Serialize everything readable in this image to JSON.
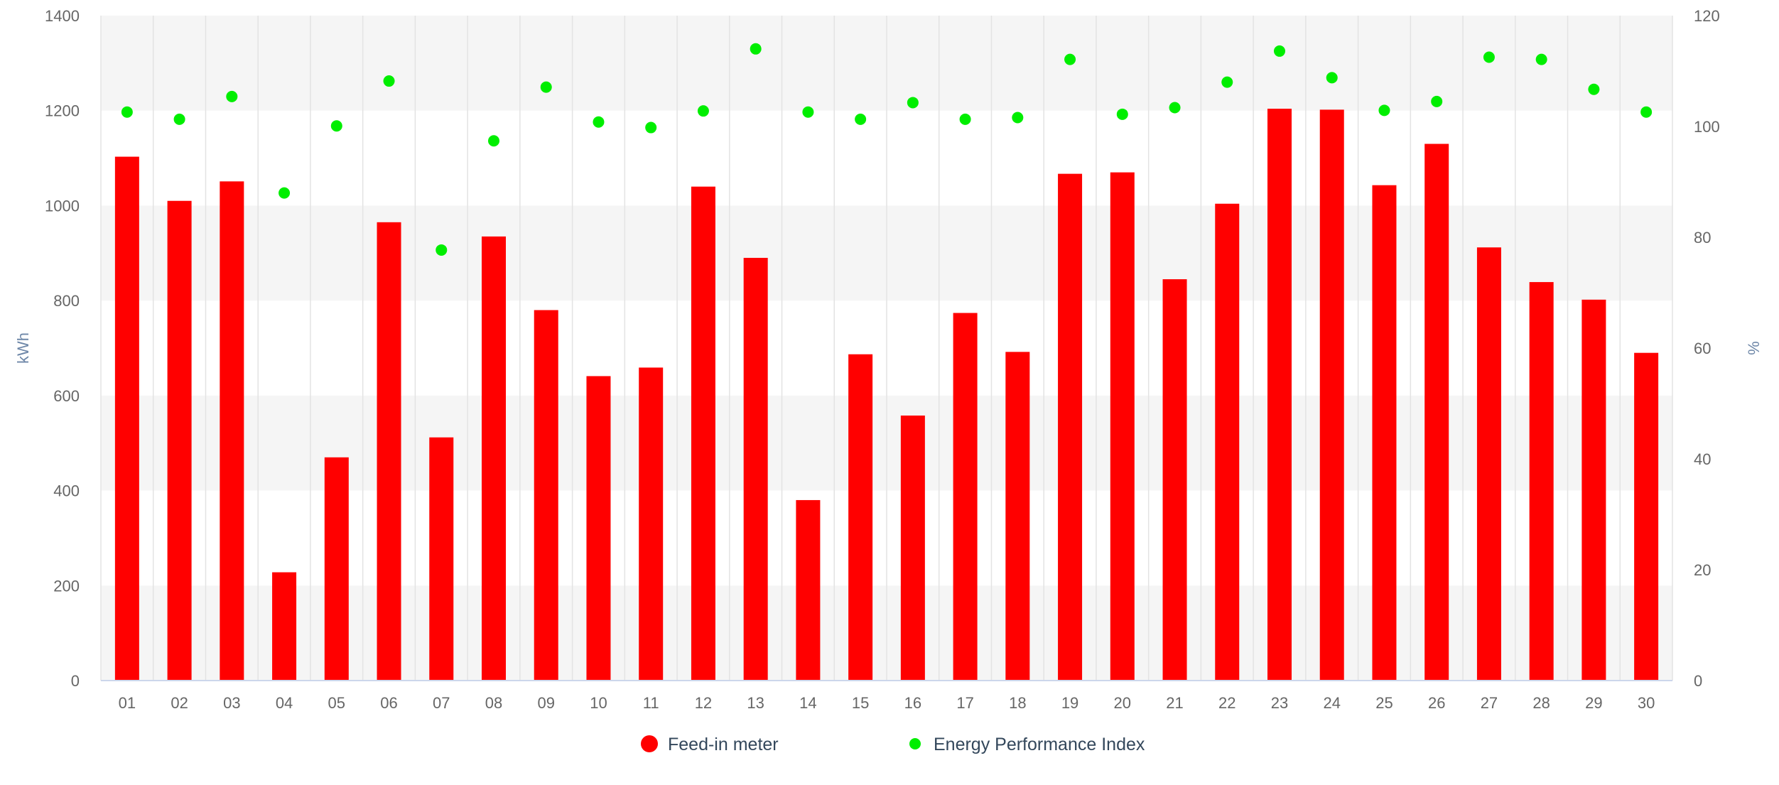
{
  "chart_data": {
    "type": "bar",
    "categories": [
      "01",
      "02",
      "03",
      "04",
      "05",
      "06",
      "07",
      "08",
      "09",
      "10",
      "11",
      "12",
      "13",
      "14",
      "15",
      "16",
      "17",
      "18",
      "19",
      "20",
      "21",
      "22",
      "23",
      "24",
      "25",
      "26",
      "27",
      "28",
      "29",
      "30"
    ],
    "series": [
      {
        "name": "Feed-in meter",
        "type": "bar",
        "axis": "left",
        "color": "#ff0000",
        "values": [
          1103,
          1010,
          1051,
          228,
          470,
          965,
          512,
          935,
          780,
          641,
          659,
          1040,
          890,
          380,
          687,
          558,
          774,
          692,
          1067,
          1070,
          845,
          1004,
          1204,
          1202,
          1043,
          1130,
          912,
          839,
          802,
          690
        ]
      },
      {
        "name": "Energy Performance Index",
        "type": "scatter",
        "axis": "right",
        "color": "#00ee00",
        "values": [
          102.6,
          101.3,
          105.4,
          88.0,
          100.1,
          108.2,
          77.7,
          97.4,
          107.1,
          100.8,
          99.8,
          102.8,
          114.0,
          102.6,
          101.3,
          104.3,
          101.3,
          101.6,
          112.1,
          102.2,
          103.4,
          108.0,
          113.6,
          108.8,
          102.9,
          104.5,
          112.5,
          112.1,
          106.7,
          102.6
        ]
      }
    ],
    "ylabel": "kWh",
    "ylim": [
      0,
      1400
    ],
    "yticks": [
      "0",
      "200",
      "400",
      "600",
      "800",
      "1000",
      "1200",
      "1400"
    ],
    "y2label": "%",
    "y2lim": [
      0,
      120
    ],
    "y2ticks": [
      "0",
      "20",
      "40",
      "60",
      "80",
      "100",
      "120"
    ],
    "grid": true,
    "legend": "bottom-center"
  }
}
